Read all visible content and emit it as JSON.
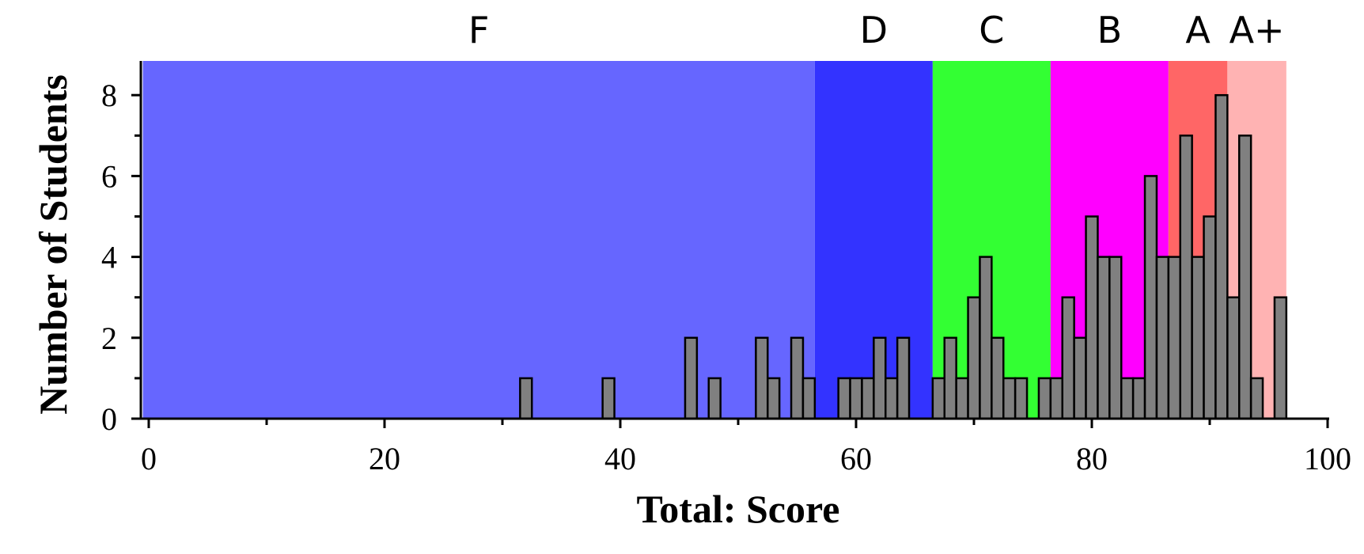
{
  "chart_data": {
    "type": "bar",
    "title": "",
    "xlabel": "Total: Score",
    "ylabel": "Number of Students",
    "xlim": [
      0,
      100
    ],
    "ylim": [
      0,
      8.8
    ],
    "x_ticks": [
      "0",
      "20",
      "40",
      "60",
      "80",
      "100"
    ],
    "y_ticks": [
      "0",
      "2",
      "4",
      "6",
      "8"
    ],
    "grade_bands": [
      {
        "label": "F",
        "from": 0,
        "to": 57,
        "color": "#6666ff"
      },
      {
        "label": "D",
        "from": 57,
        "to": 67,
        "color": "#3333ff"
      },
      {
        "label": "C",
        "from": 67,
        "to": 77,
        "color": "#33ff33"
      },
      {
        "label": "B",
        "from": 77,
        "to": 87,
        "color": "#ff00ff"
      },
      {
        "label": "A",
        "from": 87,
        "to": 92,
        "color": "#ff6666"
      },
      {
        "label": "A+",
        "from": 92,
        "to": 97,
        "color": "#ffb3b3"
      }
    ],
    "bar_color": "#808080",
    "bin_width": 1,
    "series": [
      {
        "x": [
          32,
          39,
          46,
          48,
          52,
          53,
          55,
          56,
          59,
          60,
          61,
          62,
          63,
          64,
          67,
          68,
          69,
          70,
          71,
          72,
          73,
          74,
          76,
          77,
          78,
          79,
          80,
          81,
          82,
          83,
          84,
          85,
          86,
          87,
          88,
          89,
          90,
          91,
          92,
          93,
          94,
          96
        ],
        "values": [
          1,
          1,
          2,
          1,
          2,
          1,
          2,
          1,
          1,
          1,
          1,
          2,
          1,
          2,
          1,
          2,
          1,
          3,
          4,
          2,
          1,
          1,
          1,
          1,
          3,
          2,
          5,
          4,
          4,
          1,
          1,
          6,
          4,
          4,
          7,
          4,
          5,
          8,
          3,
          7,
          1,
          3
        ]
      }
    ],
    "grid": false,
    "legend": "none"
  }
}
